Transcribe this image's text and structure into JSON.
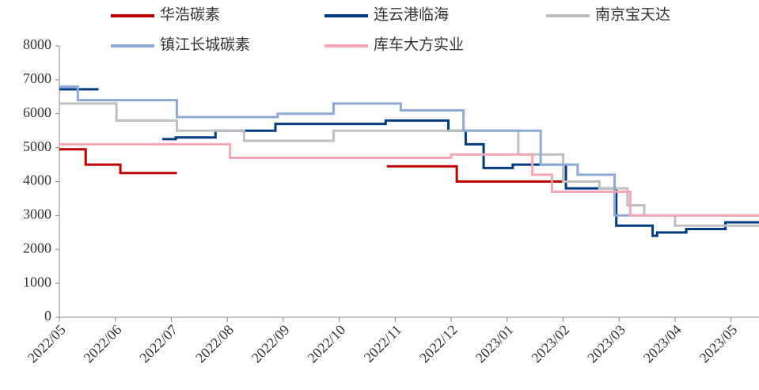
{
  "chart_data": {
    "type": "line",
    "step": true,
    "xlim": [
      0,
      12.5
    ],
    "xticks": [
      {
        "value": 0,
        "label": "2022/05"
      },
      {
        "value": 1,
        "label": "2022/06"
      },
      {
        "value": 2,
        "label": "2022/07"
      },
      {
        "value": 3,
        "label": "2022/08"
      },
      {
        "value": 4,
        "label": "2022/09"
      },
      {
        "value": 5,
        "label": "2022/10"
      },
      {
        "value": 6,
        "label": "2022/11"
      },
      {
        "value": 7,
        "label": "2022/12"
      },
      {
        "value": 8,
        "label": "2023/01"
      },
      {
        "value": 9,
        "label": "2023/02"
      },
      {
        "value": 10,
        "label": "2023/03"
      },
      {
        "value": 11,
        "label": "2023/04"
      },
      {
        "value": 12,
        "label": "2023/05"
      }
    ],
    "ylim": [
      0,
      8000
    ],
    "yticks": [
      0,
      1000,
      2000,
      3000,
      4000,
      5000,
      6000,
      7000,
      8000
    ],
    "series": [
      {
        "name": "华浩碳素",
        "color": "#c00000",
        "x": [
          0,
          0.47,
          1.09,
          2.1,
          2.11,
          5.85,
          7.1,
          9.3
        ],
        "values": [
          4950,
          4500,
          4250,
          4250,
          null,
          4450,
          4000,
          4000
        ]
      },
      {
        "name": "连云港临海",
        "color": "#003a80",
        "x": [
          0,
          0.7,
          0.71,
          1.84,
          2.08,
          2.79,
          3.86,
          5.83,
          6.95,
          7.26,
          7.58,
          8.1,
          9.05,
          9.95,
          10.6,
          10.68,
          11.2,
          11.9,
          12.5
        ],
        "values": [
          6720,
          6720,
          null,
          5250,
          5300,
          5500,
          5700,
          5800,
          5500,
          5100,
          4400,
          4500,
          3800,
          2700,
          2400,
          2500,
          2600,
          2800,
          2800
        ]
      },
      {
        "name": "南京宝天达",
        "color": "#bfbfbf",
        "x": [
          0,
          1.02,
          2.1,
          3.3,
          4.9,
          8.2,
          9.0,
          9.65,
          10.15,
          10.45,
          11.0,
          12.5
        ],
        "values": [
          6300,
          5800,
          5500,
          5200,
          5500,
          4800,
          4000,
          3800,
          3300,
          3000,
          2700,
          2700
        ]
      },
      {
        "name": "镇江长城碳素",
        "color": "#8ea9d4",
        "x": [
          0,
          0.33,
          2.1,
          3.9,
          4.9,
          6.1,
          7.22,
          8.6,
          9.26,
          9.92,
          12.5
        ],
        "values": [
          6800,
          6400,
          5900,
          6000,
          6300,
          6100,
          5500,
          4500,
          4200,
          3000,
          3000
        ]
      },
      {
        "name": "库车大方实业",
        "color": "#f4a6b4",
        "x": [
          0,
          3.05,
          7.0,
          8.45,
          8.8,
          10.2,
          12.5
        ],
        "values": [
          5100,
          4700,
          4800,
          4200,
          3700,
          3000,
          3000
        ]
      }
    ]
  }
}
